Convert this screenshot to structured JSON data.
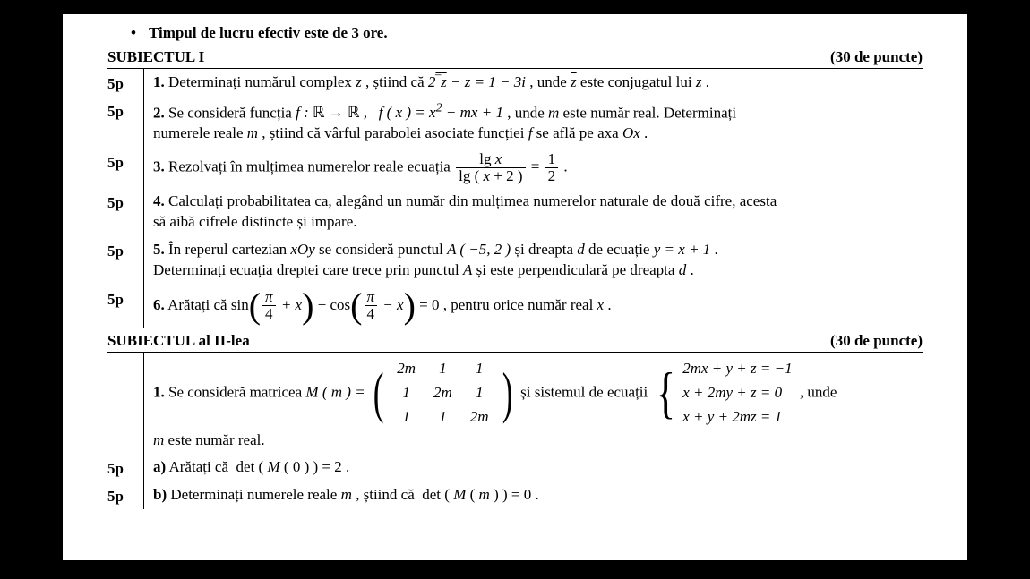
{
  "colors": {
    "text": "#000000",
    "bg_page": "#ffffff",
    "bg_outer": "#000000",
    "rule": "#000000"
  },
  "typography": {
    "family": "Times New Roman",
    "size_pt": 13,
    "bold_labels": true
  },
  "bullet": {
    "symbol": "•",
    "text": "Timpul de lucru efectiv este de 3 ore."
  },
  "sections": [
    {
      "title": "SUBIECTUL I",
      "points_label": "(30 de puncte)",
      "items": [
        {
          "pts": "5p",
          "num": "1.",
          "text_before": "Determinați numărul complex ",
          "var1": "z",
          "mid1": " , știind că  ",
          "eq": "2<span class='ov'>z</span> − z = 1 − 3i",
          "mid2": " , unde  ",
          "var2": "<span class='ov'>z</span>",
          "mid3": "  este conjugatul lui ",
          "var3": "z",
          "tail": " ."
        },
        {
          "pts": "5p",
          "num": "2.",
          "line1a": "Se  consideră  funcția  ",
          "f_decl": "f : ℝ → ℝ ,   f ( x ) = x² − mx + 1",
          "line1b": " ,  unde  ",
          "mvar": "m",
          "line1c": "  este  număr  real.  Determinați",
          "line2a": "numerele reale ",
          "m2": "m",
          "line2b": " , știind că vârful parabolei asociate funcției ",
          "fvar": "f",
          "line2c": "  se află pe axa ",
          "ox": "Ox",
          "tail": " ."
        },
        {
          "pts": "5p",
          "num": "3.",
          "text": "Rezolvați în mulțimea numerelor reale ecuația  ",
          "frac_num": "lg <span class='math'>x</span>",
          "frac_den": "lg ( <span class='math'>x</span> + 2 )",
          "eq_mid": " = ",
          "frac2_num": "1",
          "frac2_den": "2",
          "tail": " ."
        },
        {
          "pts": "5p",
          "num": "4.",
          "line1": "Calculați probabilitatea ca, alegând un număr din mulțimea numerelor naturale de două cifre, acesta",
          "line2": "să aibă cifrele distincte și impare."
        },
        {
          "pts": "5p",
          "num": "5.",
          "l1a": "În  reperul  cartezian  ",
          "xoy": "xOy",
          "l1b": "  se  consideră  punctul  ",
          "A": "A ( −5, 2 )",
          "l1c": "  și  dreapta  ",
          "d": "d",
          "l1d": "  de  ecuație  ",
          "eq": "y = x + 1",
          "l1e": " .",
          "l2a": "Determinați ecuația dreptei care trece prin punctul ",
          "A2": "A",
          "l2b": " și este perpendiculară pe dreapta ",
          "d2": "d",
          "l2c": " ."
        },
        {
          "pts": "5p",
          "num": "6.",
          "pre": "Arătați că  sin",
          "arg1_num": "π",
          "arg1_den": "4",
          "arg1_rest": " + x",
          "mid": " − cos",
          "arg2_num": "π",
          "arg2_den": "4",
          "arg2_rest": " − x",
          "post": " = 0 , pentru orice număr real ",
          "xv": "x",
          "tail": " ."
        }
      ]
    },
    {
      "title": "SUBIECTUL al II-lea",
      "points_label": "(30 de puncte)",
      "intro": {
        "num": "1.",
        "pre": "Se  consideră  matricea  ",
        "Mm": "M ( m ) =",
        "matrix": [
          [
            "2m",
            "1",
            "1"
          ],
          [
            "1",
            "2m",
            "1"
          ],
          [
            "1",
            "1",
            "2m"
          ]
        ],
        "mid": "  și  sistemul  de  ecuații  ",
        "system": [
          "2mx + y + z = −1",
          "x + 2my + z = 0",
          "x + y + 2mz = 1"
        ],
        "post": " ,  unde",
        "line2a": "m",
        "line2b": "  este număr real."
      },
      "items": [
        {
          "pts": "5p",
          "num": "a)",
          "text": "Arătați că  det ( M ( 0 ) ) = 2 ."
        },
        {
          "pts": "5p",
          "num": "b)",
          "pre": "Determinați numerele reale ",
          "m": "m",
          "mid": " , știind că  det ( M ( m ) ) = 0 ."
        }
      ]
    }
  ]
}
